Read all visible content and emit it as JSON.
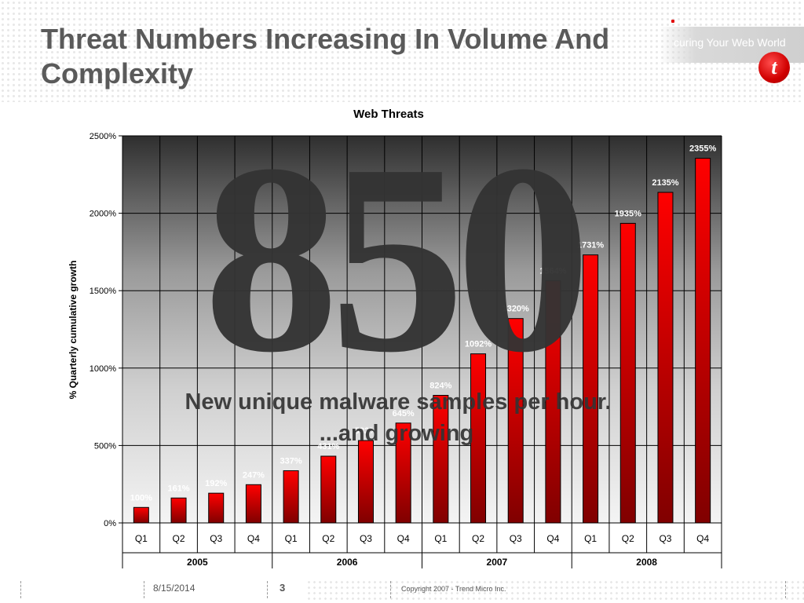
{
  "slide": {
    "title": "Threat Numbers Increasing In Volume And Complexity",
    "brand_tagline": "curing Your Web World",
    "logo_mark": "t",
    "overlay_number": "850",
    "overlay_caption_line1": "New unique malware samples per hour.",
    "overlay_caption_line2": "...and growing"
  },
  "footer": {
    "date": "8/15/2014",
    "page": "3",
    "copyright": "Copyright 2007 - Trend Micro Inc."
  },
  "colors": {
    "bar_top": "#ff0000",
    "bar_bottom": "#800000",
    "overlay_text": "#333333",
    "title": "#5a5a5a"
  },
  "chart_data": {
    "type": "bar",
    "title": "Web Threats",
    "ylabel": "% Quarterly cumulative growth",
    "xlabel": "",
    "ylim": [
      0,
      2500
    ],
    "yticks": [
      0,
      500,
      1000,
      1500,
      2000,
      2500
    ],
    "ytick_labels": [
      "0%",
      "500%",
      "1000%",
      "1500%",
      "2000%",
      "2500%"
    ],
    "categories": [
      "Q1",
      "Q2",
      "Q3",
      "Q4",
      "Q1",
      "Q2",
      "Q3",
      "Q4",
      "Q1",
      "Q2",
      "Q3",
      "Q4",
      "Q1",
      "Q2",
      "Q3",
      "Q4"
    ],
    "groups": [
      {
        "label": "2005",
        "count": 4
      },
      {
        "label": "2006",
        "count": 4
      },
      {
        "label": "2007",
        "count": 4
      },
      {
        "label": "2008",
        "count": 4
      }
    ],
    "values": [
      100,
      161,
      192,
      247,
      337,
      431,
      532,
      645,
      824,
      1092,
      1320,
      1564,
      1731,
      1935,
      2135,
      2355
    ],
    "data_labels": [
      "100%",
      "161%",
      "192%",
      "247%",
      "337%",
      "431%",
      "532%",
      "645%",
      "824%",
      "1092%",
      "1320%",
      "1564%",
      "1731%",
      "1935%",
      "2135%",
      "2355%"
    ],
    "grid": true,
    "legend": "none"
  }
}
